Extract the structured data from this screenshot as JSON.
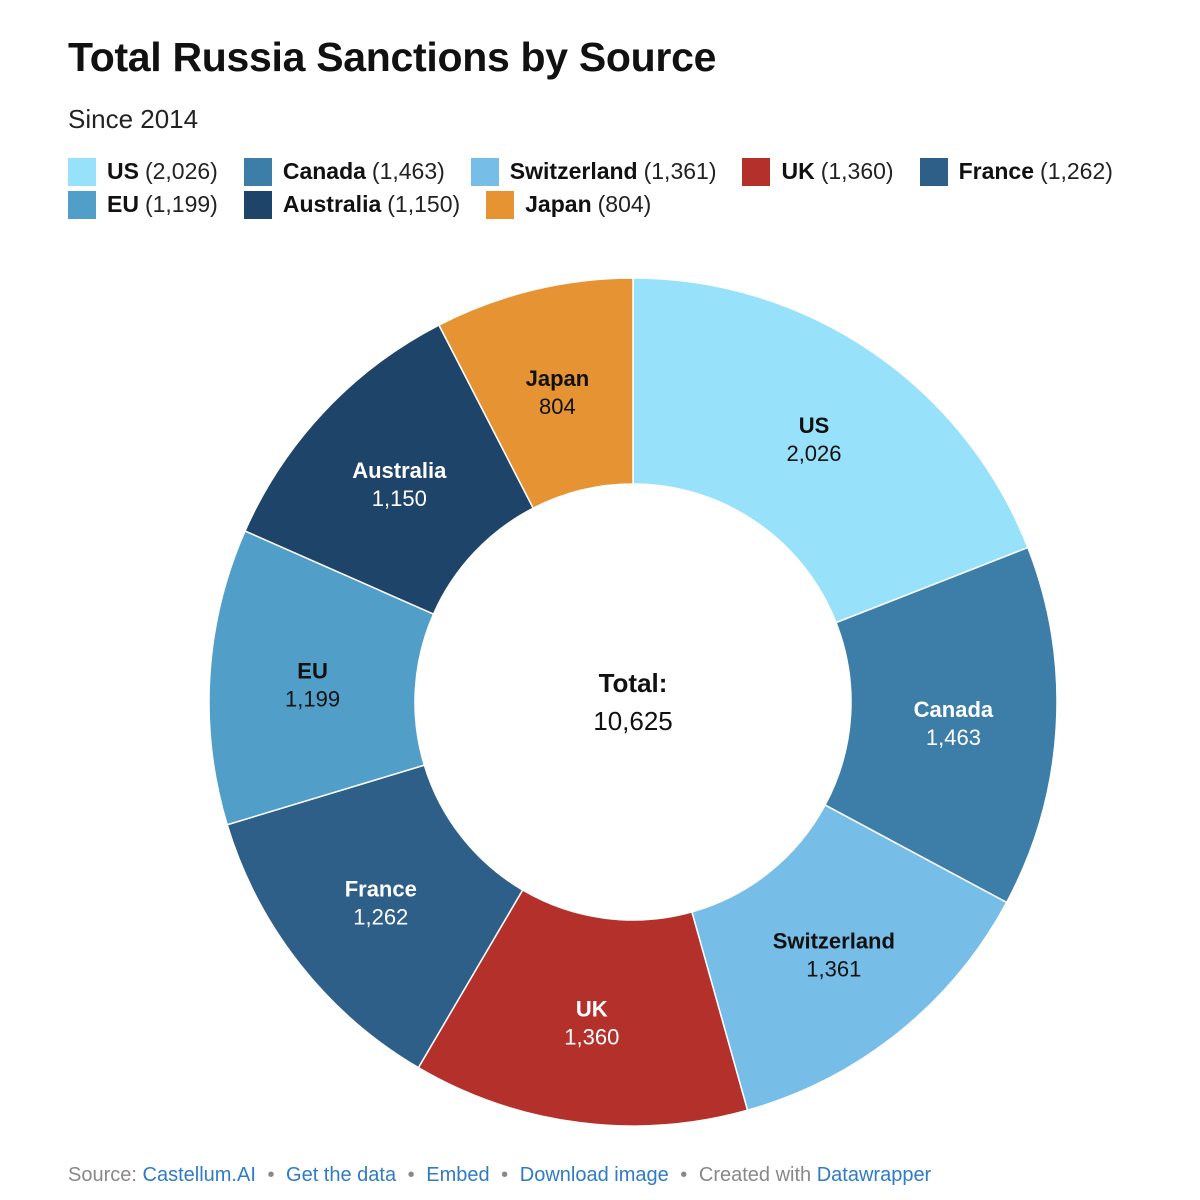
{
  "title": "Total Russia Sanctions by Source",
  "subtitle": "Since 2014",
  "chart_data": {
    "type": "pie",
    "donut": true,
    "categories": [
      "US",
      "Canada",
      "Switzerland",
      "UK",
      "France",
      "EU",
      "Australia",
      "Japan"
    ],
    "values": [
      2026,
      1463,
      1361,
      1360,
      1262,
      1199,
      1150,
      804
    ],
    "value_labels": [
      "2,026",
      "1,463",
      "1,361",
      "1,360",
      "1,262",
      "1,199",
      "1,150",
      "804"
    ],
    "colors": [
      "#97e1fa",
      "#3d7ea8",
      "#76bde8",
      "#b3302b",
      "#2e5f89",
      "#519fc8",
      "#1f446a",
      "#e69334"
    ],
    "label_colors": [
      "#111111",
      "#ffffff",
      "#111111",
      "#ffffff",
      "#ffffff",
      "#111111",
      "#ffffff",
      "#111111"
    ],
    "legend": [
      {
        "name": "US",
        "value": "(2,026)"
      },
      {
        "name": "Canada",
        "value": "(1,463)"
      },
      {
        "name": "Switzerland",
        "value": "(1,361)"
      },
      {
        "name": "UK",
        "value": "(1,360)"
      },
      {
        "name": "France",
        "value": "(1,262)"
      },
      {
        "name": "EU",
        "value": "(1,199)"
      },
      {
        "name": "Australia",
        "value": "(1,150)"
      },
      {
        "name": "Japan",
        "value": "(804)"
      }
    ],
    "center_label": "Total:",
    "center_value": "10,625",
    "legend_placement": "top"
  },
  "footer": {
    "source_prefix": "Source:",
    "source_name": "Castellum.AI",
    "get_data": "Get the data",
    "embed": "Embed",
    "download": "Download image",
    "created_with": "Created with",
    "tool": "Datawrapper",
    "separator": "•"
  }
}
